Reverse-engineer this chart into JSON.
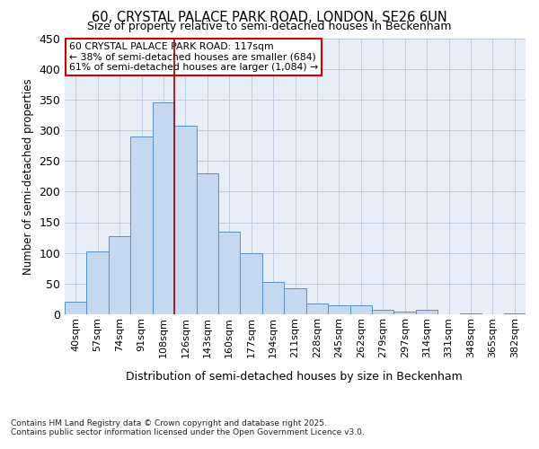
{
  "title1": "60, CRYSTAL PALACE PARK ROAD, LONDON, SE26 6UN",
  "title2": "Size of property relative to semi-detached houses in Beckenham",
  "xlabel": "Distribution of semi-detached houses by size in Beckenham",
  "ylabel": "Number of semi-detached properties",
  "bar_labels": [
    "40sqm",
    "57sqm",
    "74sqm",
    "91sqm",
    "108sqm",
    "126sqm",
    "143sqm",
    "160sqm",
    "177sqm",
    "194sqm",
    "211sqm",
    "228sqm",
    "245sqm",
    "262sqm",
    "279sqm",
    "297sqm",
    "314sqm",
    "331sqm",
    "348sqm",
    "365sqm",
    "382sqm"
  ],
  "bar_values": [
    20,
    103,
    128,
    290,
    345,
    307,
    230,
    135,
    100,
    53,
    42,
    17,
    15,
    15,
    7,
    5,
    8,
    0,
    1,
    0,
    2
  ],
  "bar_color": "#c5d8f0",
  "bar_edge_color": "#5b8fc9",
  "vline_color": "#aa0000",
  "annotation_title": "60 CRYSTAL PALACE PARK ROAD: 117sqm",
  "annotation_line1": "← 38% of semi-detached houses are smaller (684)",
  "annotation_line2": "61% of semi-detached houses are larger (1,084) →",
  "annotation_box_color": "#ffffff",
  "annotation_box_edge": "#cc0000",
  "ylim": [
    0,
    450
  ],
  "yticks": [
    0,
    50,
    100,
    150,
    200,
    250,
    300,
    350,
    400,
    450
  ],
  "background_color": "#e8eef8",
  "footer1": "Contains HM Land Registry data © Crown copyright and database right 2025.",
  "footer2": "Contains public sector information licensed under the Open Government Licence v3.0."
}
